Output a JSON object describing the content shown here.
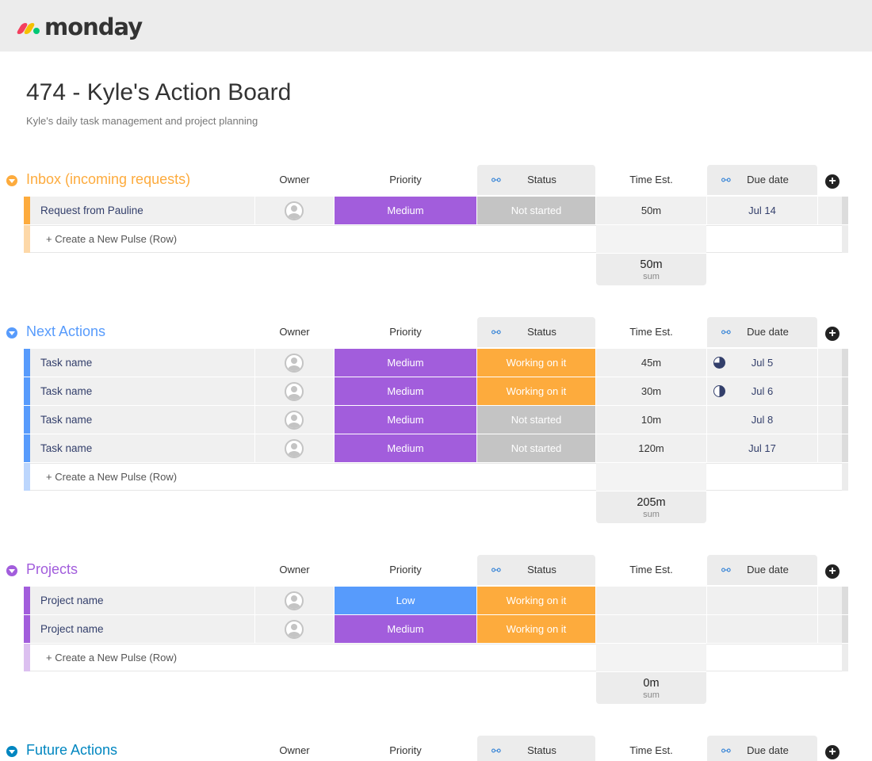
{
  "app": {
    "logo_text": "monday",
    "logo_colors": [
      "#f43f5e",
      "#f5c000",
      "#00c875"
    ]
  },
  "board": {
    "title": "474 - Kyle's Action Board",
    "description": "Kyle's daily task management and project planning"
  },
  "columns": {
    "owner": "Owner",
    "priority": "Priority",
    "status": "Status",
    "time": "Time Est.",
    "due": "Due date"
  },
  "new_row_label": "+ Create a New Pulse (Row)",
  "sum_label": "sum",
  "colors": {
    "orange": "#fdab3d",
    "purple": "#a25ddc",
    "blue": "#579bfc",
    "darkblue": "#0086c0",
    "status_orange": "#fdab3d",
    "status_grey": "#c4c4c4",
    "priority_medium": "#a25ddc",
    "priority_low": "#579bfc"
  },
  "groups": [
    {
      "title": "Inbox (incoming requests)",
      "color": "#fdab3d",
      "light": "#fdd8a8",
      "sum": "50m",
      "rows": [
        {
          "name": "Request from Pauline",
          "priority": "Medium",
          "priority_color": "#a25ddc",
          "status": "Not started",
          "status_color": "#c4c4c4",
          "time": "50m",
          "due": "Jul 14",
          "clock": ""
        }
      ]
    },
    {
      "title": "Next Actions",
      "color": "#579bfc",
      "light": "#bcd6fd",
      "sum": "205m",
      "rows": [
        {
          "name": "Task name",
          "priority": "Medium",
          "priority_color": "#a25ddc",
          "status": "Working on it",
          "status_color": "#fdab3d",
          "time": "45m",
          "due": "Jul 5",
          "clock": "three-quarter-clock-icon"
        },
        {
          "name": "Task name",
          "priority": "Medium",
          "priority_color": "#a25ddc",
          "status": "Working on it",
          "status_color": "#fdab3d",
          "time": "30m",
          "due": "Jul 6",
          "clock": "half-clock-icon"
        },
        {
          "name": "Task name",
          "priority": "Medium",
          "priority_color": "#a25ddc",
          "status": "Not started",
          "status_color": "#c4c4c4",
          "time": "10m",
          "due": "Jul 8",
          "clock": ""
        },
        {
          "name": "Task name",
          "priority": "Medium",
          "priority_color": "#a25ddc",
          "status": "Not started",
          "status_color": "#c4c4c4",
          "time": "120m",
          "due": "Jul 17",
          "clock": ""
        }
      ]
    },
    {
      "title": "Projects",
      "color": "#a25ddc",
      "light": "#dcc0f0",
      "sum": "0m",
      "rows": [
        {
          "name": "Project name",
          "priority": "Low",
          "priority_color": "#579bfc",
          "status": "Working on it",
          "status_color": "#fdab3d",
          "time": "",
          "due": "",
          "clock": ""
        },
        {
          "name": "Project name",
          "priority": "Medium",
          "priority_color": "#a25ddc",
          "status": "Working on it",
          "status_color": "#fdab3d",
          "time": "",
          "due": "",
          "clock": ""
        }
      ]
    },
    {
      "title": "Future Actions",
      "color": "#0086c0",
      "light": "#9fd0e6",
      "sum": "",
      "rows": []
    }
  ]
}
